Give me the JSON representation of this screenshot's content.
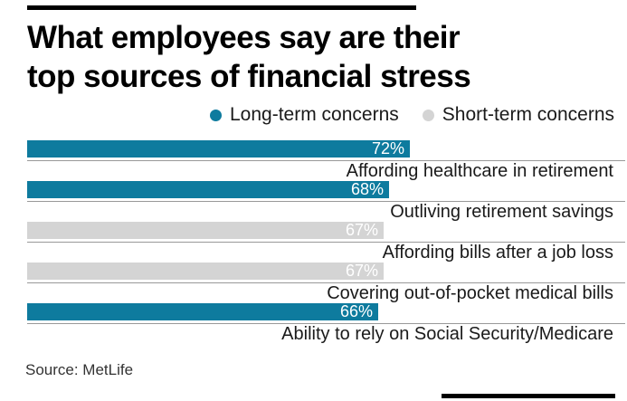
{
  "title": {
    "line1": "What employees say are their",
    "line2": "top sources of financial stress",
    "full": "What employees say are their top sources of financial stress"
  },
  "legend": [
    {
      "id": "long-term",
      "label": "Long-term concerns",
      "color": "#0e7b9e"
    },
    {
      "id": "short-term",
      "label": "Short-term concerns",
      "color": "#d4d4d4"
    }
  ],
  "source": "Source: MetLife",
  "colors": {
    "long-term": "#0e7b9e",
    "short-term": "#d4d4d4",
    "separator": "#999999",
    "accent_bar": "#000000",
    "value_text": "#ffffff",
    "label_text": "#1a1a1a"
  },
  "chart_data": {
    "type": "bar",
    "orientation": "horizontal",
    "title": "What employees say are their top sources of financial stress",
    "xlabel": "",
    "ylabel": "",
    "xlim": [
      0,
      100
    ],
    "value_suffix": "%",
    "grid": false,
    "legend_position": "top-right",
    "categories": [
      "Affording healthcare in retirement",
      "Outliving retirement savings",
      "Affording bills after a job loss",
      "Covering out-of-pocket medical bills",
      "Ability to rely on Social Security/Medicare"
    ],
    "values": [
      72,
      68,
      67,
      67,
      66
    ],
    "series_membership": [
      "Long-term concerns",
      "Long-term concerns",
      "Short-term concerns",
      "Short-term concerns",
      "Long-term concerns"
    ],
    "items": [
      {
        "label": "Affording healthcare in retirement",
        "value": 72,
        "display": "72%",
        "group": "long-term"
      },
      {
        "label": "Outliving retirement savings",
        "value": 68,
        "display": "68%",
        "group": "long-term"
      },
      {
        "label": "Affording bills after a job loss",
        "value": 67,
        "display": "67%",
        "group": "short-term"
      },
      {
        "label": "Covering out-of-pocket medical bills",
        "value": 67,
        "display": "67%",
        "group": "short-term"
      },
      {
        "label": "Ability to rely on Social Security/Medicare",
        "value": 66,
        "display": "66%",
        "group": "long-term"
      }
    ],
    "source": "Source: MetLife"
  }
}
